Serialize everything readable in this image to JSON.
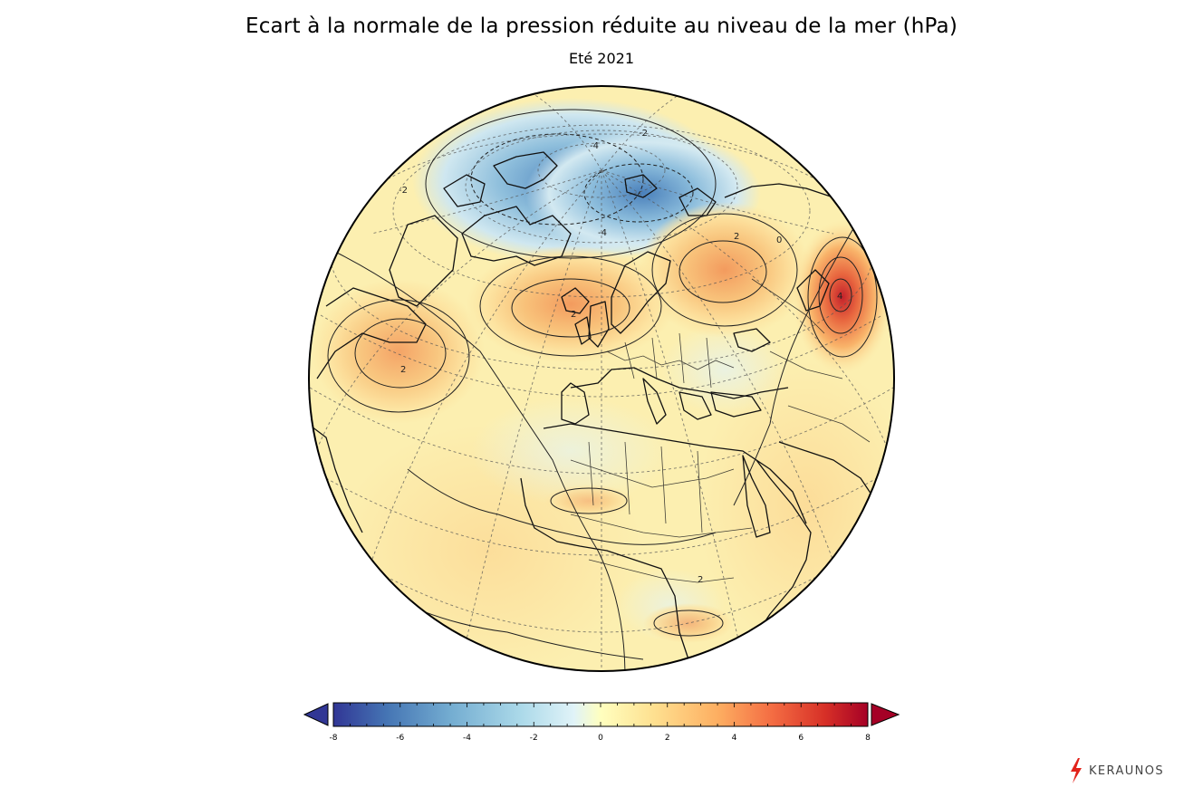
{
  "header": {
    "title": "Ecart à la normale de la pression réduite au niveau de la mer (hPa)",
    "subtitle": "Eté 2021"
  },
  "map": {
    "projection": "orthographic",
    "variable": "sea level pressure anomaly",
    "unit": "hPa",
    "contour_labels": [
      "-4",
      "-2",
      "-4",
      "-2",
      "2",
      "2",
      "2",
      "0",
      "4",
      "2"
    ],
    "anomaly_centers": [
      {
        "region": "Arctic (Canadian Archipelago)",
        "value": -5
      },
      {
        "region": "Arctic (Barents/Kara)",
        "value": -5
      },
      {
        "region": "North Atlantic (south of Iceland)",
        "value": 3
      },
      {
        "region": "Western Russia",
        "value": 3
      },
      {
        "region": "Western Atlantic",
        "value": 2.5
      },
      {
        "region": "Central Asia",
        "value": 6
      }
    ]
  },
  "colorbar": {
    "min": -8,
    "max": 8,
    "tick_labels": [
      "-8",
      "-6",
      "-4",
      "-2",
      "0",
      "2",
      "4",
      "6",
      "8"
    ],
    "colors": [
      "#313695",
      "#4575b4",
      "#74add1",
      "#abd9e9",
      "#e0f3f8",
      "#ffffbf",
      "#fee090",
      "#fdae61",
      "#f46d43",
      "#d73027",
      "#a50026"
    ],
    "extend": "both"
  },
  "brand": {
    "name": "KERAUNOS",
    "icon": "lightning-bolt-icon",
    "color": "#e2231a"
  }
}
